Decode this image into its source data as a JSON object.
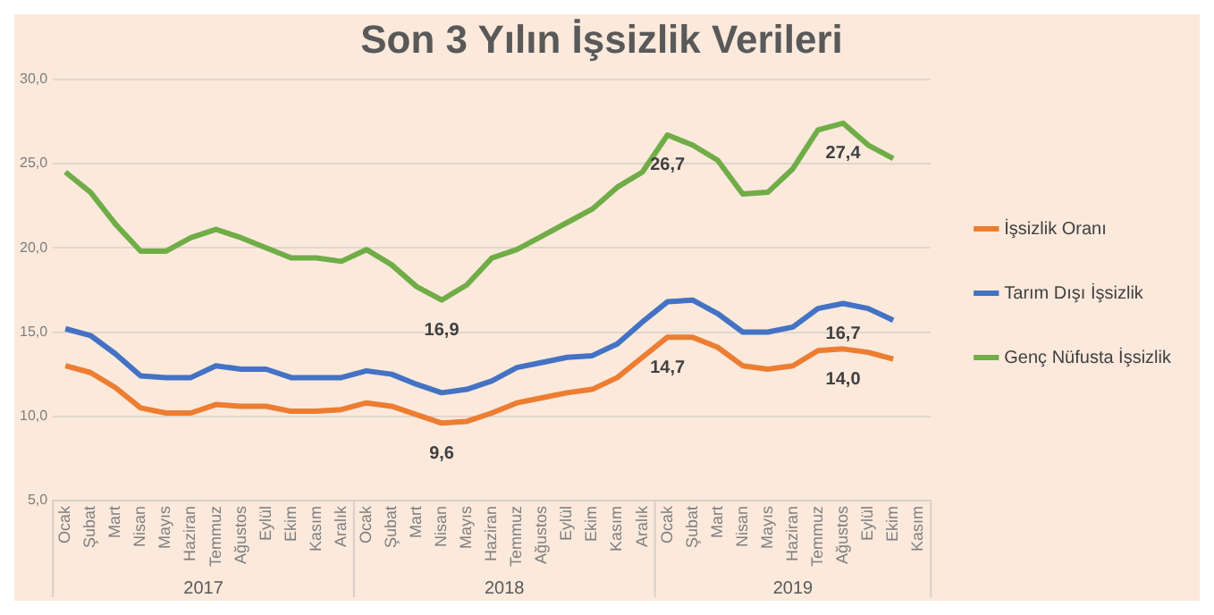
{
  "chart_data": {
    "type": "line",
    "title": "Son 3 Yılın İşsizlik Verileri",
    "categories": [
      "Ocak",
      "Şubat",
      "Mart",
      "Nisan",
      "Mayıs",
      "Haziran",
      "Temmuz",
      "Ağustos",
      "Eylül",
      "Ekim",
      "Kasım",
      "Aralık",
      "Ocak",
      "Şubat",
      "Mart",
      "Nisan",
      "Mayıs",
      "Haziran",
      "Temmuz",
      "Ağustos",
      "Eylül",
      "Ekim",
      "Kasım",
      "Aralık",
      "Ocak",
      "Şubat",
      "Mart",
      "Nisan",
      "Mayıs",
      "Haziran",
      "Temmuz",
      "Ağustos",
      "Eylül",
      "Ekim",
      "Kasım"
    ],
    "series": [
      {
        "name": "İşsizlik Oranı",
        "color": "#ed7d31",
        "values": [
          13.0,
          12.6,
          11.7,
          10.5,
          10.2,
          10.2,
          10.7,
          10.6,
          10.6,
          10.3,
          10.3,
          10.4,
          10.8,
          10.6,
          10.1,
          9.6,
          9.7,
          10.2,
          10.8,
          11.1,
          11.4,
          11.6,
          12.3,
          13.5,
          14.7,
          14.7,
          14.1,
          13.0,
          12.8,
          13.0,
          13.9,
          14.0,
          13.8,
          13.4,
          null
        ],
        "value_labels": [
          null,
          null,
          null,
          null,
          null,
          null,
          null,
          null,
          null,
          null,
          null,
          null,
          null,
          null,
          null,
          "9,6",
          null,
          null,
          null,
          null,
          null,
          null,
          null,
          null,
          "14,7",
          null,
          null,
          null,
          null,
          null,
          null,
          "14,0",
          null,
          null,
          null
        ]
      },
      {
        "name": "Tarım Dışı İşsizlik",
        "color": "#4472c4",
        "values": [
          15.2,
          14.8,
          13.7,
          12.4,
          12.3,
          12.3,
          13.0,
          12.8,
          12.8,
          12.3,
          12.3,
          12.3,
          12.7,
          12.5,
          11.9,
          11.4,
          11.6,
          12.1,
          12.9,
          13.2,
          13.5,
          13.6,
          14.3,
          15.6,
          16.8,
          16.9,
          16.1,
          15.0,
          15.0,
          15.3,
          16.4,
          16.7,
          16.4,
          15.7,
          null
        ],
        "value_labels": [
          null,
          null,
          null,
          null,
          null,
          null,
          null,
          null,
          null,
          null,
          null,
          null,
          null,
          null,
          null,
          null,
          null,
          null,
          null,
          null,
          null,
          null,
          null,
          null,
          null,
          null,
          null,
          null,
          null,
          null,
          null,
          "16,7",
          null,
          null,
          null
        ]
      },
      {
        "name": "Genç Nüfusta İşsizlik",
        "color": "#70ad47",
        "values": [
          24.5,
          23.3,
          21.4,
          19.8,
          19.8,
          20.6,
          21.1,
          20.6,
          20.0,
          19.4,
          19.4,
          19.2,
          19.9,
          19.0,
          17.7,
          16.9,
          17.8,
          19.4,
          19.9,
          20.7,
          21.5,
          22.3,
          23.6,
          24.5,
          26.7,
          26.1,
          25.2,
          23.2,
          23.3,
          24.7,
          27.0,
          27.4,
          26.1,
          25.3,
          null
        ],
        "value_labels": [
          null,
          null,
          null,
          null,
          null,
          null,
          null,
          null,
          null,
          null,
          null,
          null,
          null,
          null,
          null,
          "16,9",
          null,
          null,
          null,
          null,
          null,
          null,
          null,
          null,
          "26,7",
          null,
          null,
          null,
          null,
          null,
          null,
          "27,4",
          null,
          null,
          null
        ]
      }
    ],
    "ylim": [
      5,
      30
    ],
    "yticks": [
      {
        "value": 5,
        "label": "5,0"
      },
      {
        "value": 10,
        "label": "10,0"
      },
      {
        "value": 15,
        "label": "15,0"
      },
      {
        "value": 20,
        "label": "20,0"
      },
      {
        "value": 25,
        "label": "25,0"
      },
      {
        "value": 30,
        "label": "30,0"
      }
    ],
    "annotations": [
      "2017",
      "2018",
      "2019"
    ],
    "grid": "y",
    "legend": "right",
    "marker": "none",
    "line_style": "solid"
  }
}
